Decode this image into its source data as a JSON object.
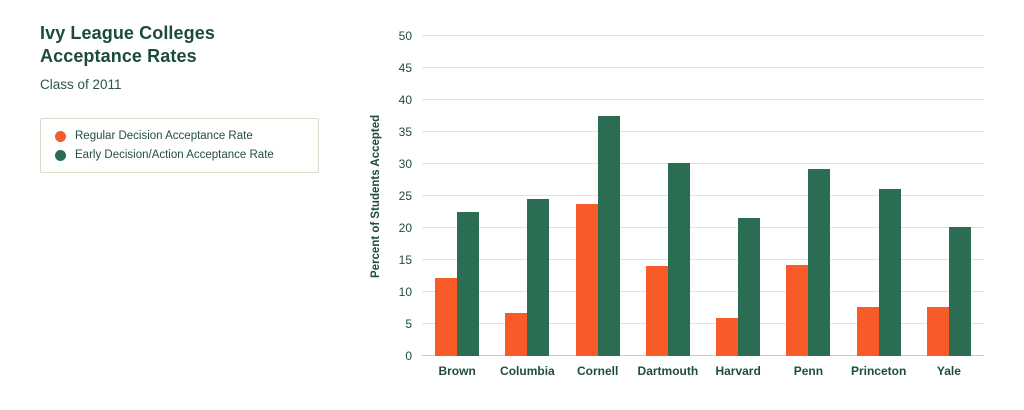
{
  "header": {
    "title_line1": "Ivy League Colleges",
    "title_line2": "Acceptance Rates",
    "subtitle": "Class of 2011"
  },
  "legend": {
    "items": [
      {
        "label": "Regular Decision Acceptance Rate",
        "color": "#f85b27"
      },
      {
        "label": "Early Decision/Action Acceptance Rate",
        "color": "#2b6d53"
      }
    ]
  },
  "chart_data": {
    "type": "bar",
    "title": "Ivy League Colleges Acceptance Rates",
    "subtitle": "Class of 2011",
    "categories": [
      "Brown",
      "Columbia",
      "Cornell",
      "Dartmouth",
      "Harvard",
      "Penn",
      "Princeton",
      "Yale"
    ],
    "series": [
      {
        "name": "Regular Decision Acceptance Rate",
        "color": "#f85b27",
        "values": [
          12.2,
          6.7,
          23.8,
          14.1,
          5.9,
          14.2,
          7.7,
          7.7
        ]
      },
      {
        "name": "Early Decision/Action Acceptance Rate",
        "color": "#2b6d53",
        "values": [
          22.5,
          24.5,
          37.5,
          30.1,
          21.5,
          29.2,
          26.1,
          20.1
        ]
      }
    ],
    "xlabel": "",
    "ylabel": "Percent of Students Accepted",
    "ylim": [
      0,
      50
    ],
    "ytick_step": 5,
    "grid": true,
    "legend_position": "left"
  },
  "colors": {
    "title_text": "#1c4b3a",
    "axis_text": "#1e4d3c",
    "gridline": "#e1e6d3",
    "baseline": "#c8cebb",
    "legend_border": "#d9decb",
    "background": "#ffffff"
  }
}
